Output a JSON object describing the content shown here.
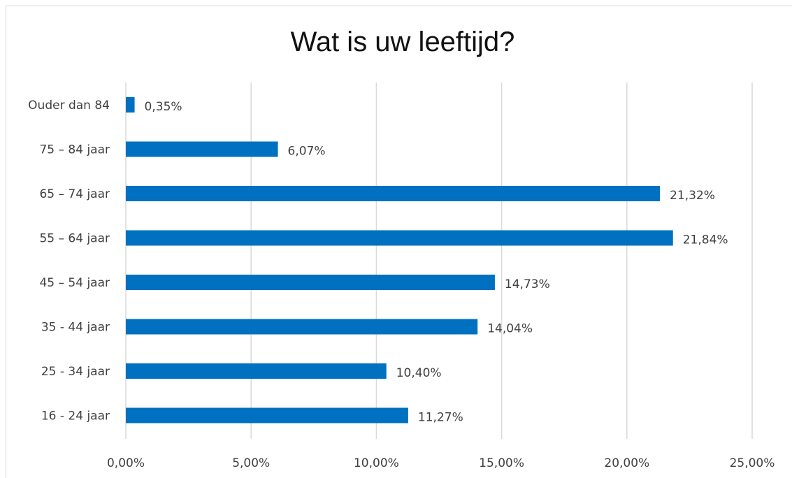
{
  "chart_data": {
    "type": "bar",
    "orientation": "horizontal",
    "title": "Wat is uw leeftijd?",
    "xlabel": "",
    "ylabel": "",
    "categories": [
      "Ouder dan 84",
      "75 – 84 jaar",
      "65 – 74 jaar",
      "55 – 64 jaar",
      "45 – 54 jaar",
      "35 - 44 jaar",
      "25 - 34 jaar",
      "16 - 24 jaar"
    ],
    "values": [
      0.35,
      6.07,
      21.32,
      21.84,
      14.73,
      14.04,
      10.4,
      11.27
    ],
    "data_labels": [
      "0,35%",
      "6,07%",
      "21,32%",
      "21,84%",
      "14,73%",
      "14,04%",
      "10,40%",
      "11,27%"
    ],
    "xlim": [
      0,
      25
    ],
    "x_ticks": [
      0,
      5,
      10,
      15,
      20,
      25
    ],
    "x_tick_labels": [
      "0,00%",
      "5,00%",
      "10,00%",
      "15,00%",
      "20,00%",
      "25,00%"
    ],
    "grid": "vertical",
    "legend": "none",
    "bar_color": "#0070c0",
    "grid_color": "#d9d9d9"
  }
}
